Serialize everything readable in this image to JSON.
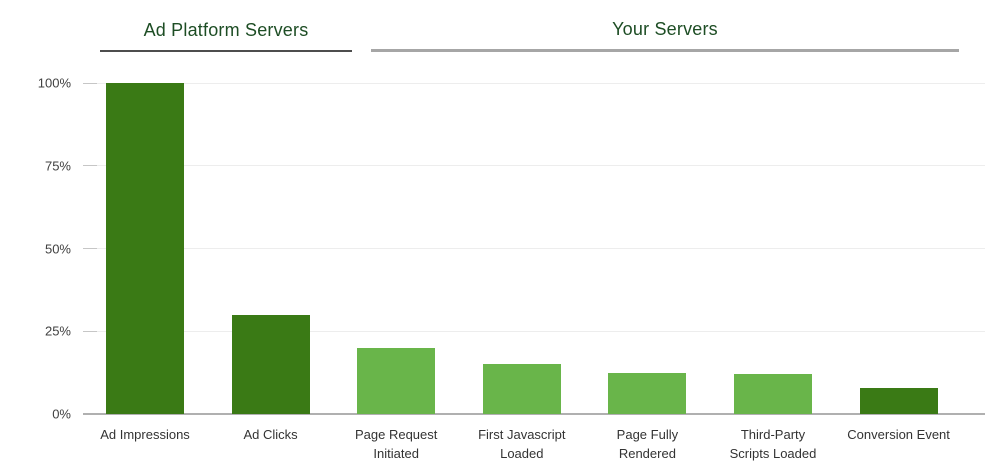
{
  "chart_data": {
    "type": "bar",
    "unit": "%",
    "title": "",
    "categories": [
      "Ad Impressions",
      "Ad Clicks",
      "Page Request Initiated",
      "First Javascript Loaded",
      "Page Fully Rendered",
      "Third-Party Scripts Loaded",
      "Conversion Event"
    ],
    "label_lines": [
      [
        "Ad Impressions"
      ],
      [
        "Ad Clicks"
      ],
      [
        "Page Request",
        "Initiated"
      ],
      [
        "First Javascript",
        "Loaded"
      ],
      [
        "Page Fully",
        "Rendered"
      ],
      [
        "Third-Party",
        "Scripts Loaded"
      ],
      [
        "Conversion Event"
      ]
    ],
    "values": [
      100,
      30,
      20,
      15,
      12.5,
      12,
      8
    ],
    "bar_color_keys": [
      "dark",
      "dark",
      "light",
      "light",
      "light",
      "light",
      "dark"
    ],
    "yticks": [
      0,
      25,
      50,
      75,
      100
    ],
    "ytick_labels": [
      "0%",
      "25%",
      "50%",
      "75%",
      "100%"
    ],
    "ylim": [
      0,
      100
    ],
    "grid": true,
    "legend": "none",
    "groups": [
      {
        "label": "Ad Platform Servers",
        "categories": [
          "Ad Impressions",
          "Ad Clicks"
        ]
      },
      {
        "label": "Your Servers",
        "categories": [
          "Page Request Initiated",
          "First Javascript Loaded",
          "Page Fully Rendered",
          "Third-Party Scripts Loaded",
          "Conversion Event"
        ]
      }
    ]
  },
  "colors": {
    "bar_dark_green": "#3a7a15",
    "bar_light_green": "#69b54a",
    "header_text": "#1d4d24",
    "header_rule_dark": "#4d4d4d",
    "header_rule_gray": "#a6a6a6",
    "gridline": "#ededed",
    "tick": "#c6c6c6",
    "axis_line": "#b0b0b0",
    "axis_label_text": "#404040",
    "category_label_text": "#333333"
  }
}
